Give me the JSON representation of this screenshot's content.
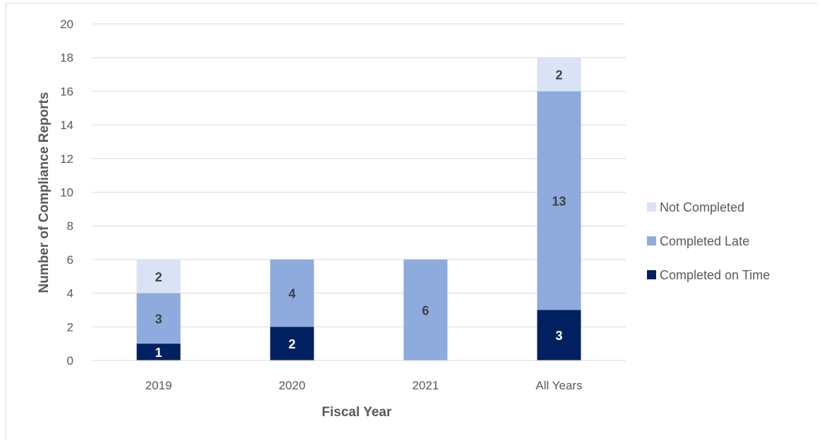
{
  "chart_data": {
    "type": "bar",
    "stacked": true,
    "categories": [
      "2019",
      "2020",
      "2021",
      "All Years"
    ],
    "series": [
      {
        "name": "Completed on Time",
        "color": "#002060",
        "label_color": "#ffffff",
        "values": [
          1,
          2,
          0,
          3
        ]
      },
      {
        "name": "Completed Late",
        "color": "#8faadc",
        "label_color": "#404040",
        "values": [
          3,
          4,
          6,
          13
        ]
      },
      {
        "name": "Not Completed",
        "color": "#dae3f3",
        "label_color": "#404040",
        "values": [
          2,
          0,
          0,
          2
        ]
      }
    ],
    "xlabel": "Fiscal Year",
    "ylabel": "Number of Compliance Reports",
    "ylim": [
      0,
      20
    ],
    "yticks": [
      "0",
      "2",
      "4",
      "6",
      "8",
      "10",
      "12",
      "14",
      "16",
      "18",
      "20"
    ],
    "grid": true,
    "legend_position": "right",
    "legend_order": [
      "Not Completed",
      "Completed Late",
      "Completed on Time"
    ]
  }
}
